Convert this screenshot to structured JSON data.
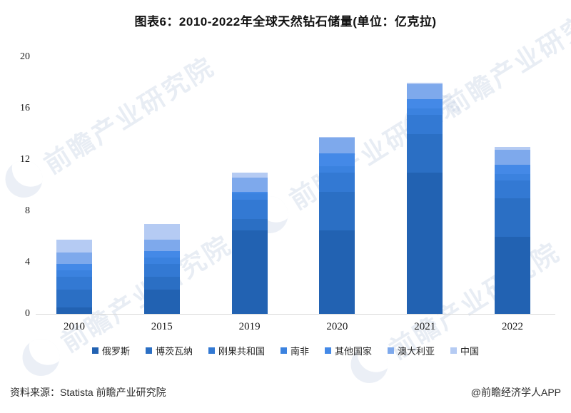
{
  "page": {
    "footer": {
      "source": "资料来源：Statista 前瞻产业研究院",
      "credit": "@前瞻经济学人APP"
    },
    "watermark_text": "前瞻产业研究院"
  },
  "chart_data": {
    "type": "bar",
    "stacked": true,
    "title": "图表6：2010-2022年全球天然钻石储量(单位：亿克拉)",
    "unit": "亿克拉",
    "categories": [
      "2010",
      "2015",
      "2019",
      "2020",
      "2021",
      "2022"
    ],
    "series": [
      {
        "name": "俄罗斯",
        "color": "#2262b2",
        "values": [
          0.5,
          1.9,
          6.5,
          6.5,
          11.0,
          6.0
        ]
      },
      {
        "name": "博茨瓦纳",
        "color": "#2b6fc4",
        "values": [
          1.4,
          1.0,
          0.9,
          3.0,
          3.0,
          3.0
        ]
      },
      {
        "name": "刚果共和国",
        "color": "#3379d3",
        "values": [
          1.0,
          1.0,
          1.5,
          1.5,
          1.5,
          1.4
        ]
      },
      {
        "name": "南非",
        "color": "#3b82df",
        "values": [
          0.5,
          0.5,
          0.5,
          0.5,
          0.5,
          0.5
        ]
      },
      {
        "name": "其他国家",
        "color": "#4489e7",
        "values": [
          0.5,
          0.5,
          0.1,
          1.0,
          0.7,
          0.7
        ]
      },
      {
        "name": "澳大利亚",
        "color": "#7ea9ec",
        "values": [
          0.9,
          0.9,
          1.1,
          1.2,
          1.2,
          1.2
        ]
      },
      {
        "name": "中国",
        "color": "#b5cbf3",
        "values": [
          1.0,
          1.2,
          0.4,
          0.1,
          0.1,
          0.2
        ]
      }
    ],
    "totals": [
      5.8,
      7.0,
      11.0,
      13.8,
      18.0,
      13.0
    ],
    "xlabel": "",
    "ylabel": "",
    "ylim": [
      0,
      20
    ],
    "yticks": [
      0,
      4,
      8,
      12,
      16,
      20
    ],
    "grid": false,
    "legend_position": "bottom"
  }
}
